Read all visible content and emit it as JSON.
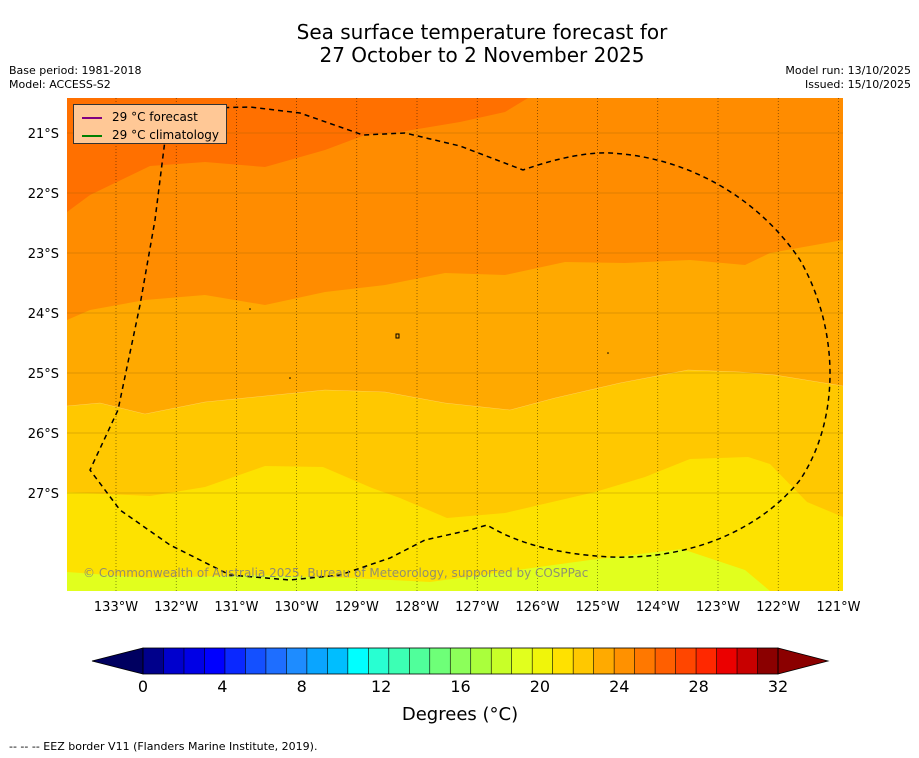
{
  "title": {
    "line1": "Sea surface temperature forecast for",
    "line2": "27 October to 2 November 2025"
  },
  "meta": {
    "base_period": "Base period: 1981-2018",
    "model": "Model: ACCESS-S2",
    "model_run": "Model run: 13/10/2025",
    "issued": "Issued: 15/10/2025"
  },
  "legend": {
    "forecast": {
      "label": "29 °C  forecast",
      "color": "#800080"
    },
    "climatology": {
      "label": "29 °C  climatology",
      "color": "#008000"
    }
  },
  "copyright": "© Commonwealth of Australia 2025, Bureau of Meteorology, supported by COSPPac",
  "lat_labels": [
    "21°S",
    "22°S",
    "23°S",
    "24°S",
    "25°S",
    "26°S",
    "27°S"
  ],
  "lon_labels": [
    "133°W",
    "132°W",
    "131°W",
    "130°W",
    "129°W",
    "128°W",
    "127°W",
    "126°W",
    "125°W",
    "124°W",
    "123°W",
    "122°W",
    "121°W"
  ],
  "colorbar": {
    "ticks": [
      "0",
      "4",
      "8",
      "12",
      "16",
      "20",
      "24",
      "28",
      "32"
    ],
    "label": "Degrees (°C)",
    "colors": [
      "#00008b",
      "#0000cd",
      "#0000e6",
      "#0000ff",
      "#0a28ff",
      "#1450ff",
      "#1e6eff",
      "#1e8cff",
      "#0aa5ff",
      "#00beff",
      "#00ffff",
      "#28ffd2",
      "#3cffb4",
      "#50ff9b",
      "#6eff78",
      "#8cff5a",
      "#aaff3c",
      "#c8ff28",
      "#e1ff1e",
      "#f0f50a",
      "#ffe100",
      "#ffc800",
      "#ffaa00",
      "#ff9100",
      "#ff7800",
      "#ff5f00",
      "#ff4600",
      "#ff2800",
      "#eb0000",
      "#c80000",
      "#8b0000"
    ],
    "under_color": "#000060",
    "over_color": "#8b0000"
  },
  "footer": "--  --  -- EEZ border V11 (Flanders Marine Institute, 2019).",
  "colors": {
    "band_22_23": "#e1ff1e",
    "band_23_24": "#fde200",
    "band_24_25": "#ffc800",
    "band_25_26": "#ffa900",
    "band_26_27": "#ff8c00",
    "band_27_28": "#ff7000"
  }
}
